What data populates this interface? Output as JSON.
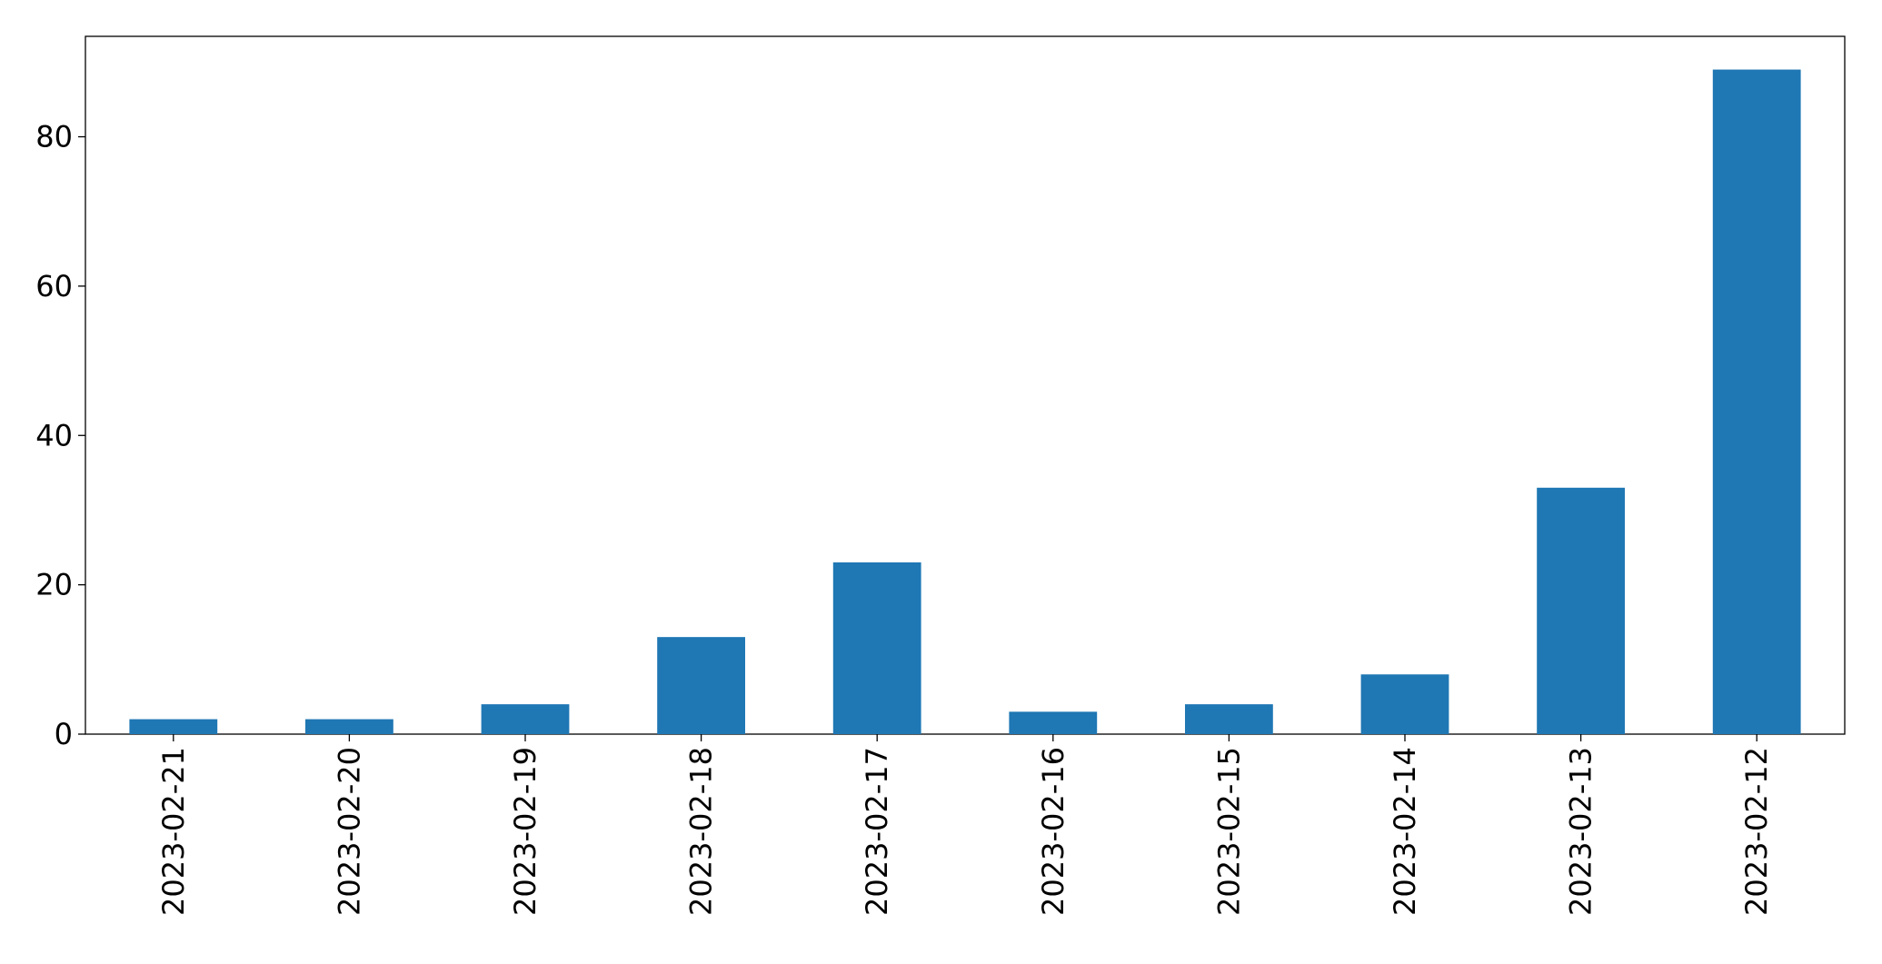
{
  "chart_data": {
    "type": "bar",
    "categories": [
      "2023-02-21",
      "2023-02-20",
      "2023-02-19",
      "2023-02-18",
      "2023-02-17",
      "2023-02-16",
      "2023-02-15",
      "2023-02-14",
      "2023-02-13",
      "2023-02-12"
    ],
    "values": [
      2,
      2,
      4,
      13,
      23,
      3,
      4,
      8,
      33,
      89
    ],
    "color": "#1f77b4",
    "ylim": [
      0,
      93.45
    ],
    "yticks": [
      0,
      20,
      40,
      60,
      80
    ],
    "grid": false
  }
}
